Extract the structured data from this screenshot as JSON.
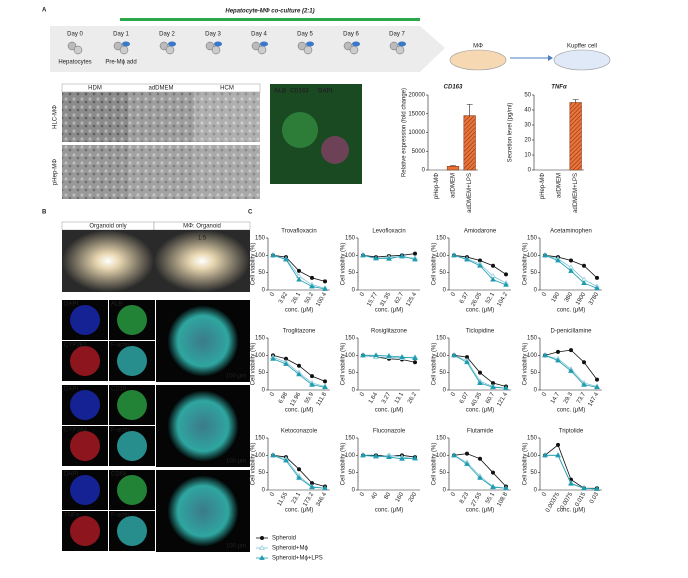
{
  "panel_a": {
    "label": "A",
    "title": "Hepatocyte-MΦ co-culture (2:1)",
    "days": [
      "Day 0",
      "Day 1",
      "Day 2",
      "Day 3",
      "Day 4",
      "Day 5",
      "Day 6",
      "Day 7"
    ],
    "day_notes": [
      "Hepatocytes",
      "Pre-Mϕ add"
    ],
    "dish_labels": [
      "MΦ",
      "Kupffer cell"
    ],
    "media": [
      "HDM",
      "adDMEM",
      "HCM"
    ],
    "rows": [
      "HLC-MΦ",
      "pHep-MΦ"
    ],
    "stain": [
      "ALB",
      "CD163",
      "DAPI"
    ]
  },
  "panel_b": {
    "label": "B",
    "photo_titles": [
      "Organoid only",
      "MΦ: Organoid"
    ],
    "ratio": "1:5",
    "stains": [
      "DAPI",
      "ALB",
      "CYP2E1",
      "F-actin",
      "DAPI",
      "CD16",
      "CYP3A4",
      "F-actin",
      "DAPI",
      "CD68",
      "TNFα",
      "F-actin"
    ],
    "scale": "100 μm"
  },
  "panel_c": {
    "label": "C"
  },
  "legend": {
    "series": [
      {
        "name": "Spheroid",
        "color": "#111111",
        "marker": "circle"
      },
      {
        "name": "Spheroid+Mϕ",
        "color": "#7cc6d6",
        "marker": "open-triangle"
      },
      {
        "name": "Spheroid+Mϕ+LPS",
        "color": "#1f9bb0",
        "marker": "triangle"
      }
    ]
  },
  "chart_data": [
    {
      "type": "bar",
      "title": "CD163",
      "ylabel": "Relative expression (fold change)",
      "categories": [
        "pHep-MΦ",
        "adDMEM",
        "adDMEM+LPS"
      ],
      "values": [
        0,
        1000,
        14500
      ],
      "errors": [
        null,
        200,
        3000
      ],
      "colors": [
        "#e8743b",
        "#e8743b",
        "#e8743b"
      ],
      "hatched": [
        false,
        false,
        true
      ],
      "ylim": [
        0,
        20000
      ],
      "yticks": [
        0,
        5000,
        10000,
        15000,
        20000
      ]
    },
    {
      "type": "bar",
      "title": "TNFα",
      "ylabel": "Secretion level (pg/ml)",
      "categories": [
        "pHep-MΦ",
        "adDMEM",
        "adDMEM+LPS"
      ],
      "values": [
        0,
        0,
        45
      ],
      "errors": [
        null,
        null,
        2
      ],
      "colors": [
        "#e8743b",
        "#e8743b",
        "#e8743b"
      ],
      "hatched": [
        false,
        false,
        true
      ],
      "ylim": [
        0,
        50
      ],
      "yticks": [
        0,
        10,
        20,
        30,
        40,
        50
      ]
    },
    {
      "type": "line",
      "title": "Trovafloxacin",
      "ylabel": "Cell viability (%)",
      "xlabel": "conc. (μM)",
      "categories": [
        "0",
        "3.92",
        "26.1",
        "50.2",
        "100.4"
      ],
      "ylim": [
        0,
        150
      ],
      "yticks": [
        0,
        50,
        100,
        150
      ],
      "series": [
        {
          "values": [
            100,
            95,
            55,
            35,
            25
          ]
        },
        {
          "values": [
            100,
            90,
            40,
            15,
            5
          ]
        },
        {
          "values": [
            100,
            88,
            30,
            10,
            3
          ]
        }
      ]
    },
    {
      "type": "line",
      "title": "Levofloxacin",
      "ylabel": "Cell viability (%)",
      "xlabel": "conc. (μM)",
      "categories": [
        "0",
        "15.77",
        "31.35",
        "62.7",
        "125.4"
      ],
      "ylim": [
        0,
        150
      ],
      "yticks": [
        0,
        50,
        100,
        150
      ],
      "series": [
        {
          "values": [
            100,
            95,
            98,
            100,
            105
          ]
        },
        {
          "values": [
            100,
            90,
            95,
            95,
            92
          ]
        },
        {
          "values": [
            100,
            92,
            90,
            98,
            88
          ]
        }
      ]
    },
    {
      "type": "line",
      "title": "Amiodarone",
      "ylabel": "Cell viability (%)",
      "xlabel": "conc. (μM)",
      "categories": [
        "0",
        "6.37",
        "26.05",
        "52.1",
        "104.2"
      ],
      "ylim": [
        0,
        150
      ],
      "yticks": [
        0,
        50,
        100,
        150
      ],
      "series": [
        {
          "values": [
            100,
            95,
            85,
            70,
            45
          ]
        },
        {
          "values": [
            100,
            90,
            75,
            40,
            20
          ]
        },
        {
          "values": [
            100,
            88,
            70,
            30,
            15
          ]
        }
      ]
    },
    {
      "type": "line",
      "title": "Acetaminophen",
      "ylabel": "Cell viability (%)",
      "xlabel": "conc. (μM)",
      "categories": [
        "0",
        "190",
        "380",
        "1900",
        "3780"
      ],
      "ylim": [
        0,
        150
      ],
      "yticks": [
        0,
        50,
        100,
        150
      ],
      "series": [
        {
          "values": [
            100,
            95,
            85,
            70,
            35
          ]
        },
        {
          "values": [
            100,
            90,
            65,
            30,
            10
          ]
        },
        {
          "values": [
            100,
            85,
            55,
            20,
            5
          ]
        }
      ]
    },
    {
      "type": "line",
      "title": "Troglitazone",
      "ylabel": "Cell viability (%)",
      "xlabel": "conc. (μM)",
      "categories": [
        "0",
        "6.98",
        "13.96",
        "55.9",
        "111.8"
      ],
      "ylim": [
        0,
        150
      ],
      "yticks": [
        0,
        50,
        100,
        150
      ],
      "series": [
        {
          "values": [
            100,
            90,
            70,
            40,
            25
          ]
        },
        {
          "values": [
            95,
            80,
            50,
            20,
            10
          ]
        },
        {
          "values": [
            90,
            75,
            45,
            15,
            8
          ]
        }
      ]
    },
    {
      "type": "line",
      "title": "Rosiglitazone",
      "ylabel": "Cell viability (%)",
      "xlabel": "conc. (μM)",
      "categories": [
        "0",
        "1.64",
        "3.27",
        "13.1",
        "26.2"
      ],
      "ylim": [
        0,
        150
      ],
      "yticks": [
        0,
        50,
        100,
        150
      ],
      "series": [
        {
          "values": [
            100,
            95,
            90,
            88,
            80
          ]
        },
        {
          "values": [
            100,
            95,
            95,
            92,
            95
          ]
        },
        {
          "values": [
            100,
            100,
            98,
            95,
            92
          ]
        }
      ]
    },
    {
      "type": "line",
      "title": "Ticlopidine",
      "ylabel": "Cell viability (%)",
      "xlabel": "conc. (μM)",
      "categories": [
        "0",
        "6.07",
        "40.35",
        "60.7",
        "121.4"
      ],
      "ylim": [
        0,
        150
      ],
      "yticks": [
        0,
        50,
        100,
        150
      ],
      "series": [
        {
          "values": [
            100,
            95,
            50,
            20,
            10
          ]
        },
        {
          "values": [
            100,
            85,
            25,
            10,
            5
          ]
        },
        {
          "values": [
            100,
            80,
            20,
            8,
            5
          ]
        }
      ]
    },
    {
      "type": "line",
      "title": "D-penicillamine",
      "ylabel": "Cell viability (%)",
      "xlabel": "conc. (μM)",
      "categories": [
        "0",
        "14.7",
        "29.3",
        "73.7",
        "147.4"
      ],
      "ylim": [
        0,
        150
      ],
      "yticks": [
        0,
        50,
        100,
        150
      ],
      "series": [
        {
          "values": [
            100,
            110,
            115,
            80,
            30
          ]
        },
        {
          "values": [
            100,
            90,
            60,
            20,
            10
          ]
        },
        {
          "values": [
            100,
            85,
            55,
            15,
            8
          ]
        }
      ]
    },
    {
      "type": "line",
      "title": "Ketoconazole",
      "ylabel": "Cell viability (%)",
      "xlabel": "conc. (μM)",
      "categories": [
        "0",
        "11.55",
        "23.1",
        "173.2",
        "346.4"
      ],
      "ylim": [
        0,
        150
      ],
      "yticks": [
        0,
        50,
        100,
        150
      ],
      "series": [
        {
          "values": [
            100,
            95,
            60,
            20,
            10
          ]
        },
        {
          "values": [
            100,
            90,
            40,
            10,
            5
          ]
        },
        {
          "values": [
            100,
            85,
            35,
            8,
            5
          ]
        }
      ]
    },
    {
      "type": "line",
      "title": "Fluconazole",
      "ylabel": "Cell viability (%)",
      "xlabel": "conc. (μM)",
      "categories": [
        "0",
        "40",
        "80",
        "160",
        "200"
      ],
      "ylim": [
        0,
        150
      ],
      "yticks": [
        0,
        50,
        100,
        150
      ],
      "series": [
        {
          "values": [
            100,
            100,
            98,
            100,
            95
          ]
        },
        {
          "values": [
            100,
            95,
            100,
            95,
            90
          ]
        },
        {
          "values": [
            100,
            98,
            95,
            90,
            92
          ]
        }
      ]
    },
    {
      "type": "line",
      "title": "Flutamide",
      "ylabel": "Cell viability (%)",
      "xlabel": "conc. (μM)",
      "categories": [
        "0",
        "8.23",
        "27.55",
        "55.1",
        "108.8"
      ],
      "ylim": [
        0,
        150
      ],
      "yticks": [
        0,
        50,
        100,
        150
      ],
      "series": [
        {
          "values": [
            100,
            105,
            90,
            50,
            10
          ]
        },
        {
          "values": [
            100,
            80,
            40,
            10,
            5
          ]
        },
        {
          "values": [
            100,
            75,
            35,
            8,
            5
          ]
        }
      ]
    },
    {
      "type": "line",
      "title": "Triptolide",
      "ylabel": "Cell viability (%)",
      "xlabel": "conc. (μM)",
      "categories": [
        "0",
        "0.00375",
        "0.0075",
        "0.015",
        "0.03"
      ],
      "ylim": [
        0,
        150
      ],
      "yticks": [
        0,
        50,
        100,
        150
      ],
      "series": [
        {
          "values": [
            100,
            130,
            30,
            5,
            5
          ]
        },
        {
          "values": [
            100,
            100,
            20,
            5,
            3
          ]
        },
        {
          "values": [
            100,
            100,
            18,
            5,
            3
          ]
        }
      ]
    }
  ]
}
